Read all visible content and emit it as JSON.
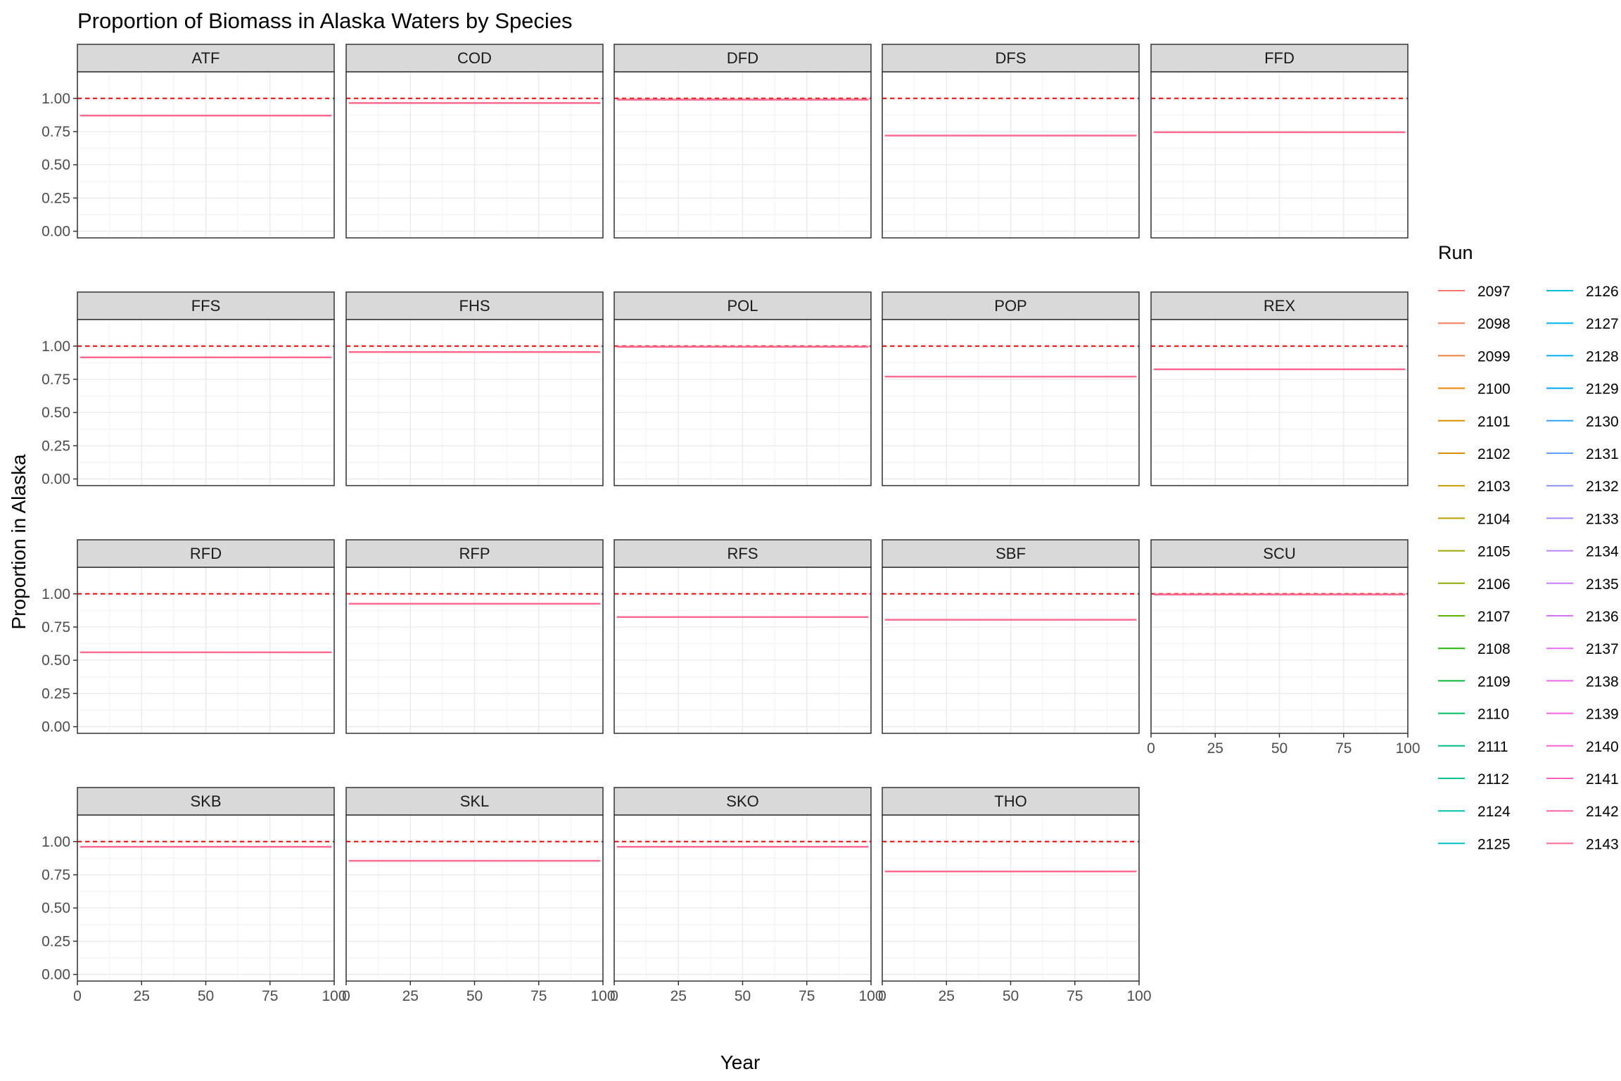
{
  "chart_data": {
    "type": "line",
    "title": "Proportion of Biomass in Alaska Waters by Species",
    "xlabel": "Year",
    "ylabel": "Proportion in Alaska",
    "xlim": [
      0,
      100
    ],
    "ylim": [
      0,
      1
    ],
    "x_ticks": [
      0,
      25,
      50,
      75,
      100
    ],
    "y_ticks": [
      "0.00",
      "0.25",
      "0.50",
      "0.75",
      "1.00"
    ],
    "reference_line": {
      "y": 1.0,
      "style": "dashed",
      "color": "#ff0000"
    },
    "grid": true,
    "x_range": [
      1,
      99
    ],
    "facets": [
      {
        "name": "ATF",
        "value": 0.87
      },
      {
        "name": "COD",
        "value": 0.965
      },
      {
        "name": "DFD",
        "value": 0.99
      },
      {
        "name": "DFS",
        "value": 0.72
      },
      {
        "name": "FFD",
        "value": 0.745
      },
      {
        "name": "FFS",
        "value": 0.915
      },
      {
        "name": "FHS",
        "value": 0.955
      },
      {
        "name": "POL",
        "value": 0.995
      },
      {
        "name": "POP",
        "value": 0.77
      },
      {
        "name": "REX",
        "value": 0.825
      },
      {
        "name": "RFD",
        "value": 0.56
      },
      {
        "name": "RFP",
        "value": 0.925
      },
      {
        "name": "RFS",
        "value": 0.825
      },
      {
        "name": "SBF",
        "value": 0.805
      },
      {
        "name": "SCU",
        "value": 0.995
      },
      {
        "name": "SKB",
        "value": 0.96
      },
      {
        "name": "SKL",
        "value": 0.855
      },
      {
        "name": "SKO",
        "value": 0.96
      },
      {
        "name": "THO",
        "value": 0.775
      }
    ],
    "legend": {
      "title": "Run",
      "position": "right",
      "entries": [
        {
          "run": "2097",
          "color": "#F8766D"
        },
        {
          "run": "2098",
          "color": "#F37B59"
        },
        {
          "run": "2099",
          "color": "#ED8141"
        },
        {
          "run": "2100",
          "color": "#E58700"
        },
        {
          "run": "2101",
          "color": "#DC8D00"
        },
        {
          "run": "2102",
          "color": "#D19400"
        },
        {
          "run": "2103",
          "color": "#C49A00"
        },
        {
          "run": "2104",
          "color": "#B79F00"
        },
        {
          "run": "2105",
          "color": "#9EA700"
        },
        {
          "run": "2106",
          "color": "#85AD00"
        },
        {
          "run": "2107",
          "color": "#5EB300"
        },
        {
          "run": "2108",
          "color": "#24B700"
        },
        {
          "run": "2109",
          "color": "#00BA38"
        },
        {
          "run": "2110",
          "color": "#00BD5F"
        },
        {
          "run": "2111",
          "color": "#00BF7D"
        },
        {
          "run": "2112",
          "color": "#00C097"
        },
        {
          "run": "2124",
          "color": "#00C0AF"
        },
        {
          "run": "2125",
          "color": "#00BFC4"
        },
        {
          "run": "2126",
          "color": "#00BBDA"
        },
        {
          "run": "2127",
          "color": "#00B6EB"
        },
        {
          "run": "2128",
          "color": "#00B0F6"
        },
        {
          "run": "2129",
          "color": "#00A9FF"
        },
        {
          "run": "2130",
          "color": "#35A2FF"
        },
        {
          "run": "2131",
          "color": "#619CFF"
        },
        {
          "run": "2132",
          "color": "#8B93FF"
        },
        {
          "run": "2133",
          "color": "#A58AFF"
        },
        {
          "run": "2134",
          "color": "#B983FF"
        },
        {
          "run": "2135",
          "color": "#C77CFF"
        },
        {
          "run": "2136",
          "color": "#DB72FB"
        },
        {
          "run": "2137",
          "color": "#E76BF3"
        },
        {
          "run": "2138",
          "color": "#F265E7"
        },
        {
          "run": "2139",
          "color": "#FA62DB"
        },
        {
          "run": "2140",
          "color": "#FD61D1"
        },
        {
          "run": "2141",
          "color": "#FF62BC"
        },
        {
          "run": "2142",
          "color": "#FF67A4"
        },
        {
          "run": "2143",
          "color": "#FF6C91"
        }
      ]
    }
  }
}
